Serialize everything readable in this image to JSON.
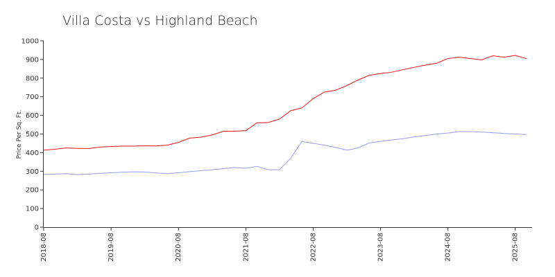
{
  "chart_data": {
    "type": "line",
    "title": "Villa Costa vs Highland Beach",
    "y_label": "Price Per Sq. Ft.",
    "x": [
      "2018-08",
      "2018-10",
      "2018-12",
      "2019-02",
      "2019-04",
      "2019-06",
      "2019-08",
      "2019-10",
      "2019-12",
      "2020-02",
      "2020-04",
      "2020-06",
      "2020-08",
      "2020-10",
      "2020-12",
      "2021-02",
      "2021-04",
      "2021-06",
      "2021-08",
      "2021-10",
      "2021-12",
      "2022-02",
      "2022-04",
      "2022-06",
      "2022-08",
      "2022-10",
      "2022-12",
      "2023-02",
      "2023-04",
      "2023-06",
      "2023-08",
      "2023-10",
      "2023-12",
      "2024-02",
      "2024-04",
      "2024-06",
      "2024-08",
      "2024-10",
      "2024-12",
      "2025-02",
      "2025-04",
      "2025-06",
      "2025-08",
      "2025-10"
    ],
    "series": [
      {
        "color": "#ee1111",
        "values": [
          413,
          418,
          425,
          423,
          422,
          430,
          433,
          435,
          435,
          437,
          436,
          440,
          455,
          478,
          483,
          495,
          515,
          515,
          518,
          560,
          562,
          580,
          625,
          640,
          690,
          725,
          735,
          760,
          790,
          815,
          825,
          832,
          845,
          858,
          870,
          880,
          905,
          912,
          905,
          898,
          920,
          912,
          922,
          905
        ]
      },
      {
        "color": "#9999ee",
        "values": [
          283,
          285,
          287,
          282,
          285,
          289,
          292,
          295,
          297,
          296,
          291,
          287,
          292,
          298,
          303,
          308,
          314,
          320,
          316,
          326,
          308,
          308,
          370,
          460,
          450,
          440,
          428,
          413,
          425,
          452,
          460,
          468,
          475,
          484,
          492,
          500,
          505,
          513,
          513,
          510,
          507,
          503,
          500,
          497
        ]
      }
    ],
    "xlim": [
      "2018-08",
      "2025-11"
    ],
    "xticks": [
      "2018-08",
      "2019-08",
      "2020-08",
      "2021-08",
      "2022-08",
      "2023-08",
      "2024-08",
      "2025-08"
    ],
    "ylim": [
      0,
      1000
    ],
    "yticks": [
      0,
      100,
      200,
      300,
      400,
      500,
      600,
      700,
      800,
      900,
      1000
    ]
  }
}
